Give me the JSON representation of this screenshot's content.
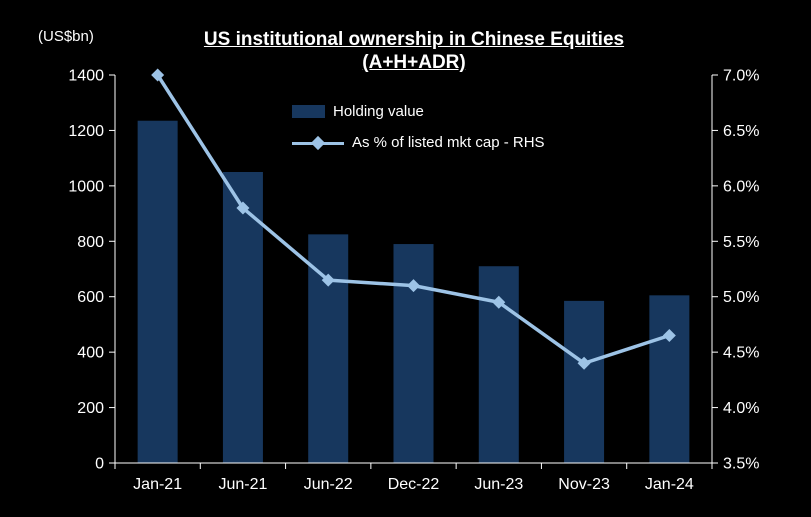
{
  "chart_data": {
    "type": "bar",
    "title_line1": "US institutional ownership in Chinese Equities",
    "title_line2": "(A+H+ADR)",
    "left_axis_units": "(US$bn)",
    "categories": [
      "Jan-21",
      "Jun-21",
      "Jun-22",
      "Dec-22",
      "Jun-23",
      "Nov-23",
      "Jan-24"
    ],
    "series": [
      {
        "name": "Holding value",
        "type": "bar",
        "axis": "left",
        "values": [
          1235,
          1050,
          825,
          790,
          710,
          585,
          605
        ]
      },
      {
        "name": "As % of listed mkt cap - RHS",
        "type": "line",
        "axis": "right",
        "values": [
          7.0,
          5.8,
          5.15,
          5.1,
          4.95,
          4.4,
          4.65
        ]
      }
    ],
    "left_axis": {
      "min": 0,
      "max": 1400,
      "tick_step": 200,
      "tick_labels": [
        "1400",
        "1200",
        "1000",
        "800",
        "600",
        "400",
        "200",
        "0"
      ]
    },
    "right_axis": {
      "min": 3.5,
      "max": 7.0,
      "tick_step": 0.5,
      "tick_labels": [
        "7.0%",
        "6.5%",
        "6.0%",
        "5.5%",
        "5.0%",
        "4.5%",
        "4.0%",
        "3.5%"
      ]
    },
    "legend_position": "top-center-inside",
    "grid": "off",
    "colors": {
      "background": "#000000",
      "bar": "#17375E",
      "line": "#9DC3E6",
      "text": "#FFFFFF",
      "axis": "#FFFFFF"
    }
  }
}
